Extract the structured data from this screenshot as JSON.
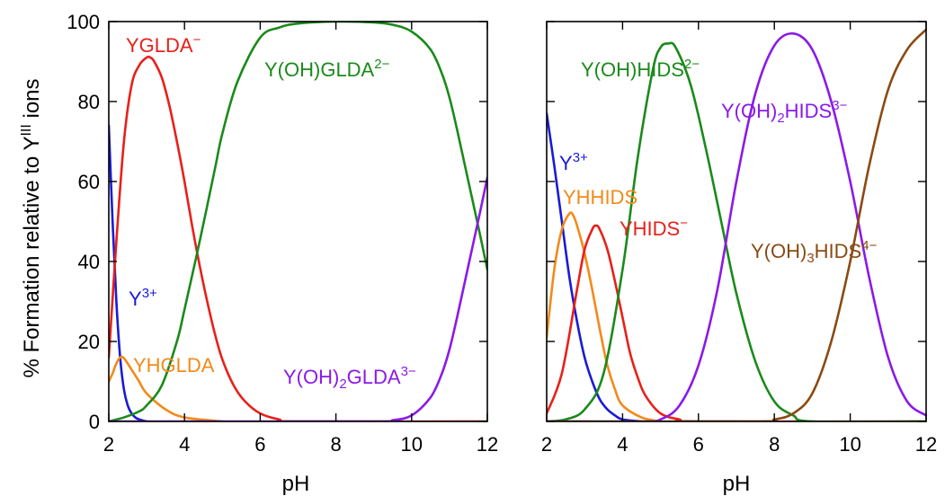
{
  "chart_data": [
    {
      "type": "line",
      "xlabel": "pH",
      "ylabel": "% Formation relative to Y^III ions",
      "xlim": [
        2,
        12
      ],
      "ylim": [
        0,
        100
      ],
      "x_ticks": [
        "2",
        "4",
        "6",
        "8",
        "10",
        "12"
      ],
      "y_ticks": [
        "0",
        "20",
        "40",
        "60",
        "80",
        "100"
      ],
      "series": [
        {
          "name": "Y3+",
          "color": "#1a1ad6",
          "x": [
            2.0,
            2.1,
            2.2,
            2.3,
            2.4,
            2.5,
            2.6,
            2.7,
            2.8,
            3.0
          ],
          "y": [
            74,
            50,
            30,
            16,
            8,
            4,
            2,
            1,
            0.5,
            0
          ]
        },
        {
          "name": "YHGLDA",
          "color": "#f28a1a",
          "x": [
            2.0,
            2.1,
            2.2,
            2.3,
            2.4,
            2.6,
            2.8,
            3.0,
            3.5,
            4.0,
            5.0
          ],
          "y": [
            10,
            12,
            14.5,
            16,
            15.8,
            13,
            10,
            7,
            3,
            1,
            0
          ]
        },
        {
          "name": "YGLDA−",
          "color": "#e8201a",
          "x": [
            2.0,
            2.2,
            2.4,
            2.6,
            2.8,
            3.0,
            3.1,
            3.2,
            3.4,
            3.6,
            3.8,
            4.0,
            4.2,
            4.4,
            4.6,
            4.8,
            5.0,
            5.3,
            5.6,
            6.0,
            6.5,
            7.0,
            12.0
          ],
          "y": [
            16,
            45,
            70,
            84,
            89,
            91,
            91,
            90,
            86,
            79,
            70,
            60,
            49,
            39,
            30,
            22,
            15.5,
            9,
            5,
            2,
            0.5,
            0,
            0
          ]
        },
        {
          "name": "Y(OH)GLDA2−",
          "color": "#1a8a1a",
          "x": [
            2.0,
            2.4,
            2.8,
            3.0,
            3.4,
            3.8,
            4.0,
            4.4,
            4.8,
            5.0,
            5.4,
            6.0,
            6.5,
            7.0,
            8.0,
            9.0,
            9.5,
            10.0,
            10.5,
            10.8,
            11.0,
            11.2,
            11.5,
            11.8,
            12.0
          ],
          "y": [
            0,
            1,
            2.5,
            4,
            9,
            20,
            28,
            45,
            63,
            72,
            85,
            96,
            98.5,
            99.5,
            100,
            99.8,
            99.2,
            97.5,
            93,
            87,
            81,
            73,
            60,
            47,
            38
          ]
        },
        {
          "name": "Y(OH)2GLDA3−",
          "color": "#8a1ae8",
          "x": [
            2.0,
            9.0,
            9.5,
            10.0,
            10.5,
            10.8,
            11.0,
            11.2,
            11.5,
            11.8,
            12.0
          ],
          "y": [
            0,
            0,
            0.3,
            1.5,
            6,
            12,
            18,
            26,
            39,
            52,
            61
          ]
        }
      ],
      "annotations": [
        "YGLDA−",
        "Y(OH)GLDA2−",
        "Y3+",
        "YHGLDA",
        "Y(OH)2GLDA3−"
      ]
    },
    {
      "type": "line",
      "xlabel": "pH",
      "ylabel": "",
      "xlim": [
        2,
        12
      ],
      "ylim": [
        0,
        100
      ],
      "x_ticks": [
        "2",
        "4",
        "6",
        "8",
        "10",
        "12"
      ],
      "y_ticks": [
        "0",
        "20",
        "40",
        "60",
        "80",
        "100"
      ],
      "series": [
        {
          "name": "Y3+",
          "color": "#1a1ad6",
          "x": [
            2.0,
            2.2,
            2.4,
            2.6,
            2.8,
            3.0,
            3.2,
            3.4,
            3.6,
            3.8,
            4.0,
            4.5
          ],
          "y": [
            77,
            64,
            50,
            36,
            25,
            16,
            10,
            5.5,
            3,
            1.5,
            0.5,
            0
          ]
        },
        {
          "name": "YHHIDS",
          "color": "#f28a1a",
          "x": [
            2.0,
            2.2,
            2.4,
            2.6,
            2.7,
            2.8,
            3.0,
            3.2,
            3.4,
            3.6,
            3.8,
            4.0,
            4.5,
            5.0
          ],
          "y": [
            21,
            38,
            48,
            52,
            51.5,
            49,
            42,
            33,
            23,
            14,
            8,
            4,
            1,
            0
          ]
        },
        {
          "name": "YHIDS−",
          "color": "#e8201a",
          "x": [
            2.0,
            2.4,
            2.8,
            3.0,
            3.2,
            3.3,
            3.4,
            3.6,
            3.8,
            4.0,
            4.2,
            4.4,
            4.6,
            5.0,
            5.5,
            6.0,
            12.0
          ],
          "y": [
            2,
            12,
            33,
            43,
            48,
            49,
            48,
            43,
            35,
            26,
            17,
            11,
            6.5,
            2,
            0.5,
            0,
            0
          ]
        },
        {
          "name": "Y(OH)HIDS2−",
          "color": "#1a8a1a",
          "x": [
            2.0,
            2.5,
            3.0,
            3.5,
            4.0,
            4.4,
            4.8,
            5.0,
            5.2,
            5.4,
            5.8,
            6.2,
            6.6,
            7.0,
            7.5,
            8.0,
            8.5,
            9.0,
            12.0
          ],
          "y": [
            0,
            0.5,
            3,
            12,
            38,
            66,
            88,
            93.5,
            94.5,
            93.5,
            84,
            68,
            50,
            32,
            15,
            5,
            1.5,
            0,
            0
          ]
        },
        {
          "name": "Y(OH)2HIDS3−",
          "color": "#8a1ae8",
          "x": [
            2.0,
            4.5,
            5.0,
            5.5,
            6.0,
            6.5,
            7.0,
            7.5,
            8.0,
            8.5,
            9.0,
            9.5,
            10.0,
            10.5,
            11.0,
            11.5,
            12.0
          ],
          "y": [
            0,
            0,
            0.5,
            4,
            14,
            33,
            60,
            82,
            94,
            97,
            93,
            80,
            60,
            36,
            16,
            5,
            1.5
          ]
        },
        {
          "name": "Y(OH)3HIDS4−",
          "color": "#8a4a12",
          "x": [
            2.0,
            7.5,
            8.0,
            8.5,
            9.0,
            9.5,
            10.0,
            10.5,
            11.0,
            11.5,
            12.0
          ],
          "y": [
            0,
            0,
            0.5,
            2,
            7,
            20,
            40,
            64,
            83,
            93,
            98
          ]
        }
      ],
      "annotations": [
        "Y(OH)HIDS2−",
        "Y(OH)2HIDS3−",
        "Y3+",
        "YHHIDS",
        "YHIDS−",
        "Y(OH)3HIDS4−"
      ]
    }
  ],
  "axis_text": {
    "ylabel_main": "% Formation relative to Y",
    "ylabel_sup": "III",
    "ylabel_tail": " ions",
    "xlabel_left": "pH",
    "xlabel_right": "pH"
  },
  "labels_left": {
    "yglda_main": "YGLDA",
    "yglda_sup": "−",
    "yohglda_main": "Y(OH)GLDA",
    "yohglda_sup": "2−",
    "y3_main": "Y",
    "y3_sup": "3+",
    "yhglda": "YHGLDA",
    "yoh2glda_a": "Y(OH)",
    "yoh2glda_sub": "2",
    "yoh2glda_b": "GLDA",
    "yoh2glda_sup": "3−"
  },
  "labels_right": {
    "yohhids_main": "Y(OH)HIDS",
    "yohhids_sup": "2−",
    "yoh2hids_a": "Y(OH)",
    "yoh2hids_sub": "2",
    "yoh2hids_b": "HIDS",
    "yoh2hids_sup": "3−",
    "y3_main": "Y",
    "y3_sup": "3+",
    "yhhids": "YHHIDS",
    "yhids_main": "YHIDS",
    "yhids_sup": "−",
    "yoh3hids_a": "Y(OH)",
    "yoh3hids_sub": "3",
    "yoh3hids_b": "HIDS",
    "yoh3hids_sup": "4−"
  }
}
